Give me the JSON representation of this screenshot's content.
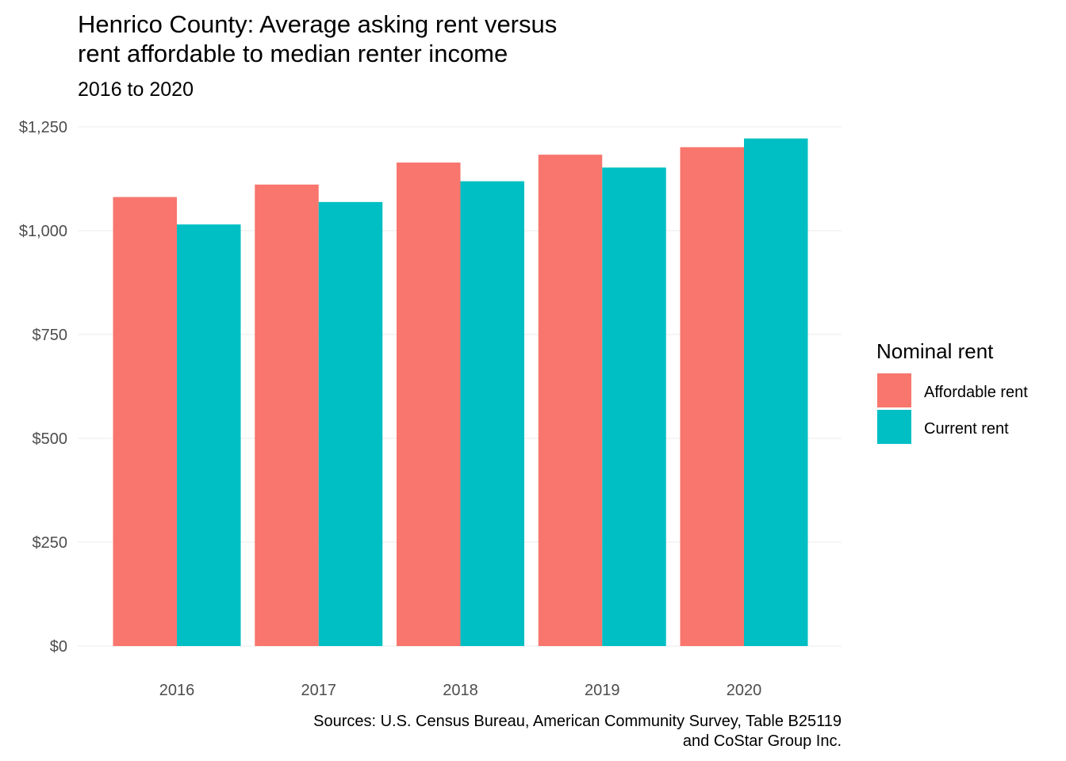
{
  "chart_data": {
    "type": "bar",
    "title_lines": [
      "Henrico County: Average asking rent versus",
      "rent affordable to median renter income"
    ],
    "subtitle": "2016 to 2020",
    "xlabel": "",
    "ylabel": "",
    "categories": [
      "2016",
      "2017",
      "2018",
      "2019",
      "2020"
    ],
    "series": [
      {
        "name": "Affordable rent",
        "color": "#F8766D",
        "values": [
          1081,
          1111,
          1164,
          1183,
          1201
        ]
      },
      {
        "name": "Current rent",
        "color": "#00BFC4",
        "values": [
          1015,
          1069,
          1119,
          1152,
          1222
        ]
      }
    ],
    "ylim": [
      0,
      1250
    ],
    "yticks": [
      0,
      250,
      500,
      750,
      1000,
      1250
    ],
    "ytick_labels": [
      "$0",
      "$250",
      "$500",
      "$750",
      "$1,000",
      "$1,250"
    ],
    "grid": true,
    "legend": {
      "title": "Nominal rent",
      "position": "right"
    },
    "caption_lines": [
      "Sources: U.S. Census Bureau, American Community Survey, Table B25119",
      "and CoStar Group Inc."
    ]
  }
}
